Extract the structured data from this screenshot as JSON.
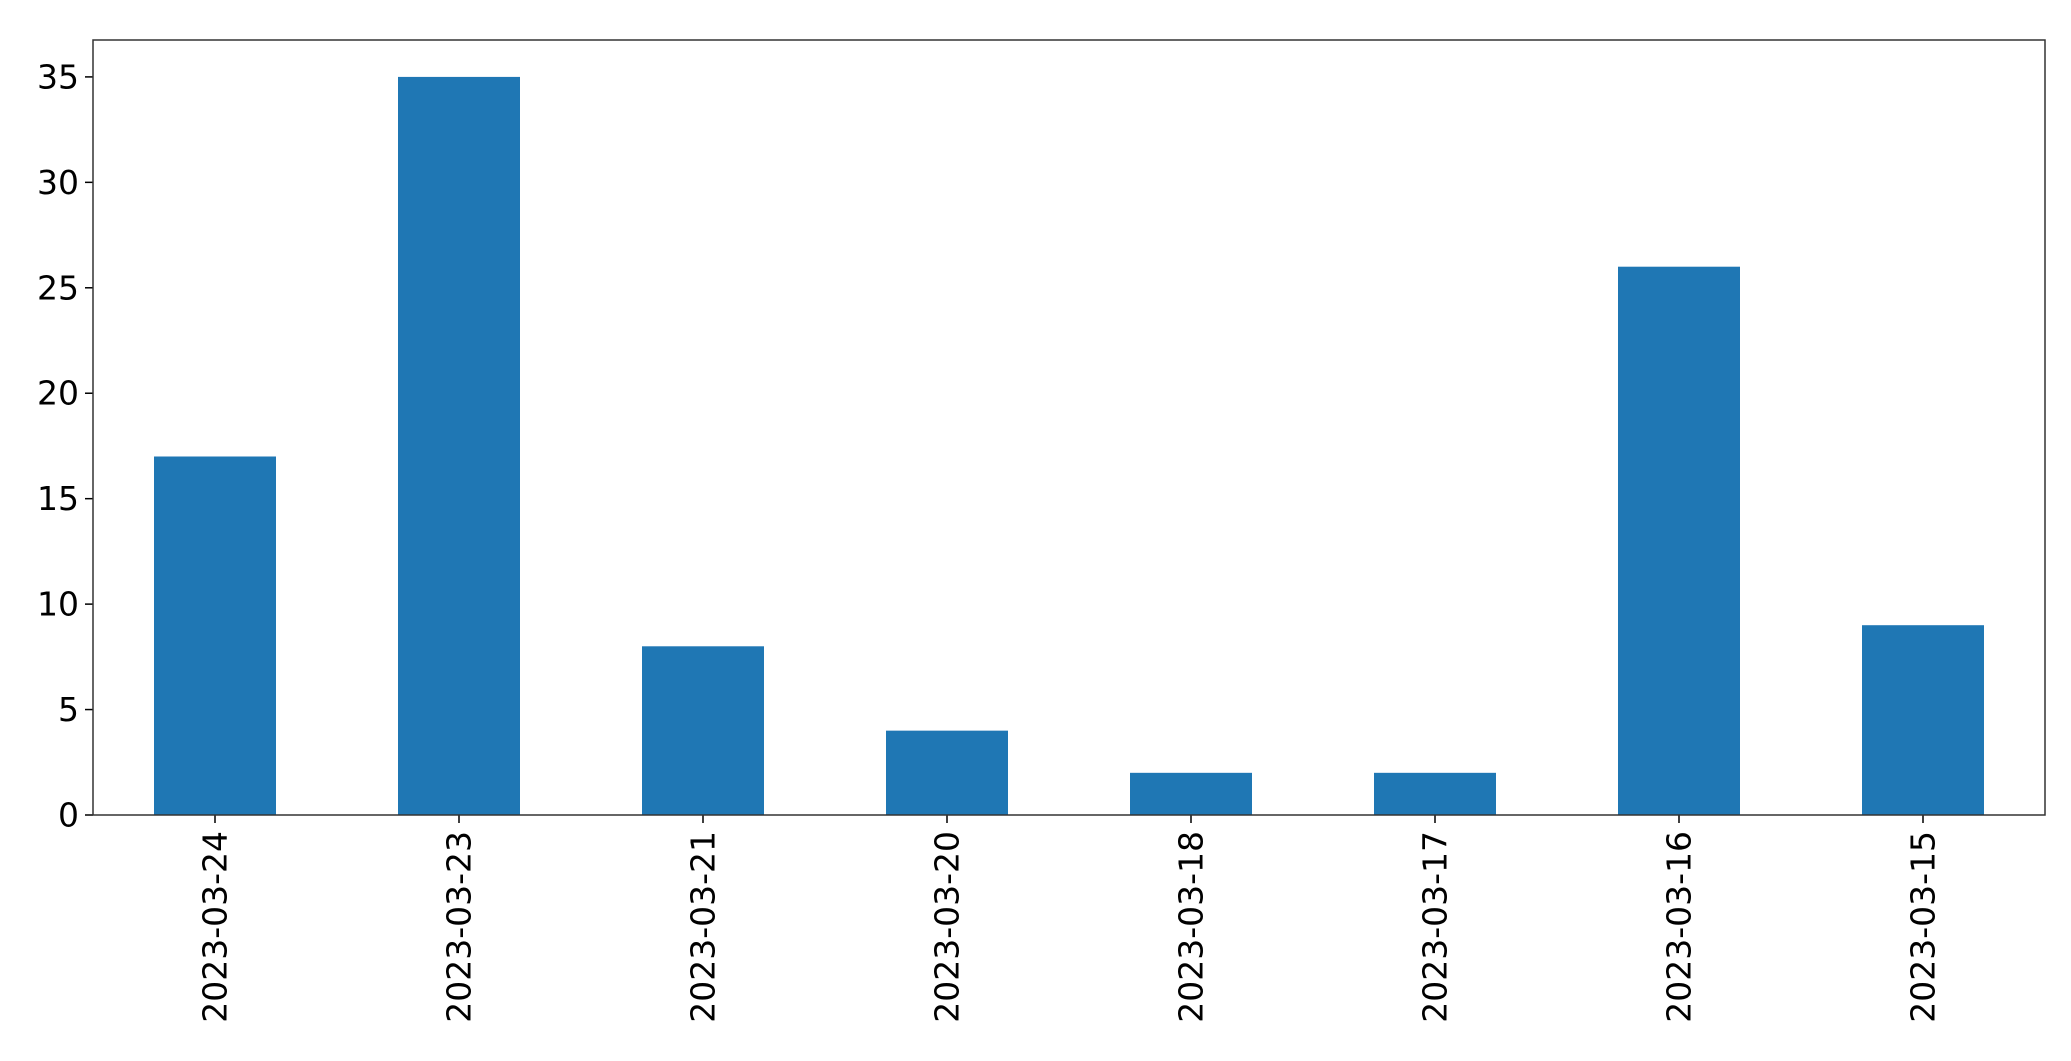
{
  "chart_data": {
    "type": "bar",
    "title": "",
    "xlabel": "",
    "ylabel": "",
    "categories": [
      "2023-03-24",
      "2023-03-23",
      "2023-03-21",
      "2023-03-20",
      "2023-03-18",
      "2023-03-17",
      "2023-03-16",
      "2023-03-15"
    ],
    "values": [
      17,
      35,
      8,
      4,
      2,
      2,
      26,
      9
    ],
    "ylim": [
      0,
      36.75
    ],
    "yticks": [
      0,
      5,
      10,
      15,
      20,
      25,
      30,
      35
    ],
    "grid": false,
    "legend": "none",
    "bar_color": "#1f77b4",
    "x_tick_rotation": "vertical"
  }
}
